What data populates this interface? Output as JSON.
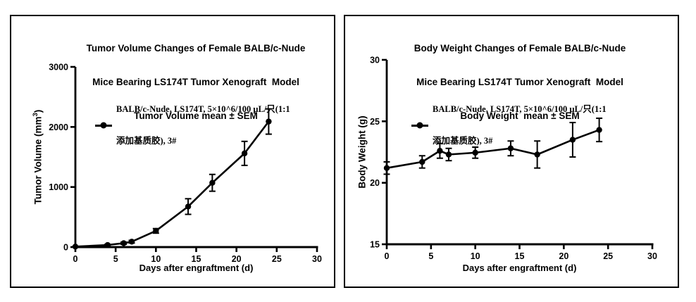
{
  "colors": {
    "foreground": "#000000",
    "background": "#ffffff"
  },
  "panels": [
    {
      "name": "tumor-volume",
      "title_lines": [
        "Tumor Volume Changes of Female BALB/c-Nude",
        "Mice Bearing LS174T Tumor Xenograft  Model",
        "Tumor Volume mean ± SEM"
      ],
      "legend_line1": "BALB/c-Nude, LS174T, 5×10^6/100 μL/只(1:1",
      "legend_line2": "添加基质胶), 3#",
      "ylabel_main": "Tumor Volume (mm",
      "ylabel_sup": "3",
      "ylabel_close": ")",
      "xlabel": "Days after engraftment (d)"
    },
    {
      "name": "body-weight",
      "title_lines": [
        "Body Weight Changes of Female BALB/c-Nude",
        "Mice Bearing LS174T Tumor Xenograft  Model",
        "Body Weight  mean ± SEM"
      ],
      "legend_line1": "BALB/c-Nude, LS174T, 5×10^6/100 μL/只(1:1",
      "legend_line2": "添加基质胶), 3#",
      "ylabel_main": "Body Weight (g)",
      "ylabel_sup": "",
      "ylabel_close": "",
      "xlabel": "Days after engraftment (d)"
    }
  ],
  "chart_data": [
    {
      "type": "line",
      "title": "Tumor Volume Changes of Female BALB/c-Nude Mice Bearing LS174T Tumor Xenograft Model, Tumor Volume mean ± SEM",
      "xlabel": "Days after engraftment (d)",
      "ylabel": "Tumor Volume (mm³)",
      "x_range": [
        0,
        30
      ],
      "y_range": [
        0,
        3000
      ],
      "x_ticks": [
        0,
        5,
        10,
        15,
        20,
        25,
        30
      ],
      "y_ticks": [
        0,
        1000,
        2000,
        3000
      ],
      "grid": false,
      "legend_position": "upper-left-inside",
      "series": [
        {
          "name": "BALB/c-Nude, LS174T, 5×10^6/100 μL/只(1:1 添加基质胶), 3#",
          "marker": "filled-circle",
          "error": "SEM",
          "x": [
            0,
            4,
            6,
            7,
            10,
            14,
            17,
            21,
            24
          ],
          "y": [
            8,
            35,
            65,
            90,
            270,
            675,
            1070,
            1560,
            2090
          ],
          "sem": [
            4,
            12,
            18,
            22,
            38,
            130,
            140,
            200,
            210
          ]
        }
      ]
    },
    {
      "type": "line",
      "title": "Body Weight Changes of Female BALB/c-Nude Mice Bearing LS174T Tumor Xenograft Model, Body Weight mean ± SEM",
      "xlabel": "Days after engraftment (d)",
      "ylabel": "Body Weight (g)",
      "x_range": [
        0,
        30
      ],
      "y_range": [
        15,
        30
      ],
      "x_ticks": [
        0,
        5,
        10,
        15,
        20,
        25,
        30
      ],
      "y_ticks": [
        15,
        20,
        25,
        30
      ],
      "grid": false,
      "legend_position": "upper-left-inside",
      "series": [
        {
          "name": "BALB/c-Nude, LS174T, 5×10^6/100 μL/只(1:1 添加基质胶), 3#",
          "marker": "filled-circle",
          "error": "SEM",
          "x": [
            0,
            4,
            6,
            7,
            10,
            14,
            17,
            21,
            24
          ],
          "y": [
            21.2,
            21.7,
            22.6,
            22.3,
            22.45,
            22.8,
            22.3,
            23.5,
            24.3
          ],
          "sem": [
            0.5,
            0.5,
            0.6,
            0.5,
            0.45,
            0.6,
            1.1,
            1.4,
            0.95
          ]
        }
      ]
    }
  ]
}
